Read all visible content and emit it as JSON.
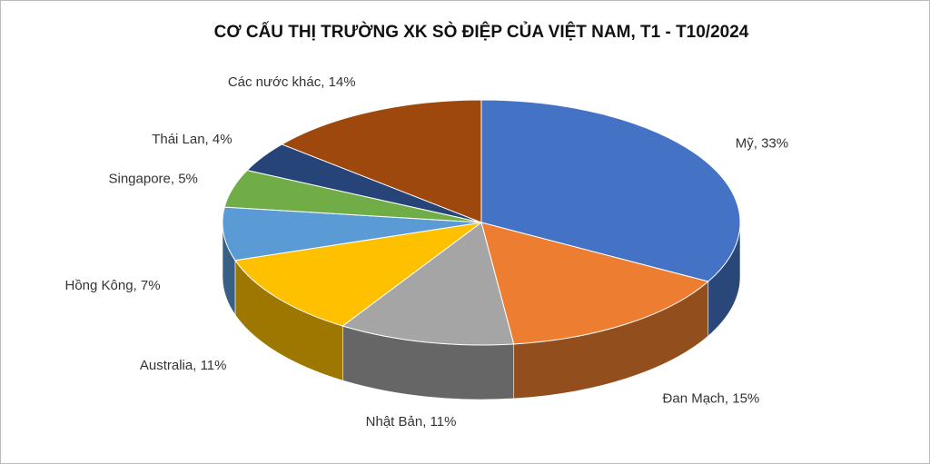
{
  "chart_data": {
    "type": "pie3d",
    "title": "CƠ CẤU THỊ TRƯỜNG XK SÒ ĐIỆP CỦA VIỆT NAM, T1 - T10/2024",
    "values": [
      33,
      15,
      11,
      11,
      7,
      5,
      4,
      14
    ],
    "value_labels": [
      "Mỹ, 33%",
      "Đan Mạch, 15%",
      "Nhật Bản, 11%",
      "Australia, 11%",
      "Hồng Kông, 7%",
      "Singapore, 5%",
      "Thái Lan, 4%",
      "Các nước khác, 14%"
    ],
    "colors": [
      "#4472c4",
      "#ed7d31",
      "#a5a5a5",
      "#ffc000",
      "#5b9bd5",
      "#70ad47",
      "#264478",
      "#9e480e"
    ]
  }
}
